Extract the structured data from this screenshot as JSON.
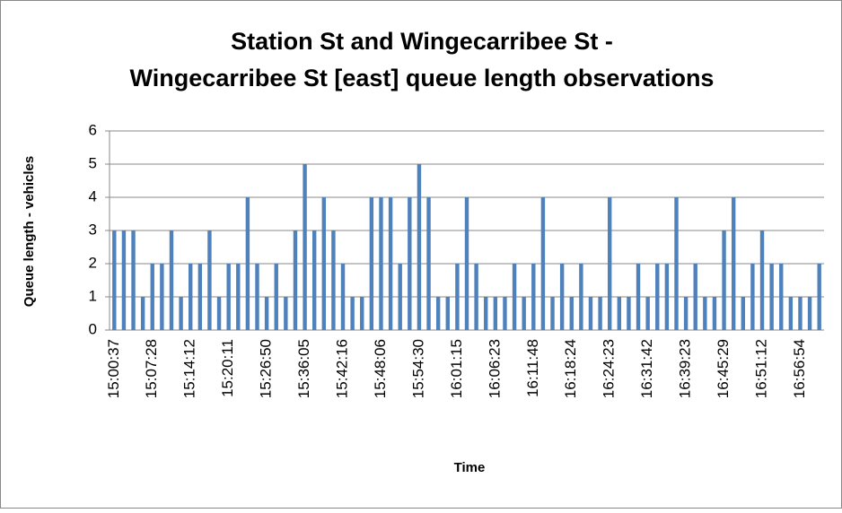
{
  "chart_data": {
    "type": "bar",
    "title": "Station St and Wingecarribee St - Wingecarribee St [east] queue length observations",
    "x_label": "Time",
    "y_label": "Queue length - vehicles",
    "categories": [
      "15:00:37",
      null,
      null,
      null,
      "15:07:28",
      null,
      null,
      null,
      "15:14:12",
      null,
      null,
      null,
      "15:20:11",
      null,
      null,
      null,
      "15:26:50",
      null,
      null,
      null,
      "15:36:05",
      null,
      null,
      null,
      "15:42:16",
      null,
      null,
      null,
      "15:48:06",
      null,
      null,
      null,
      "15:54:30",
      null,
      null,
      null,
      "16:01:15",
      null,
      null,
      null,
      "16:06:23",
      null,
      null,
      null,
      "16:11:48",
      null,
      null,
      null,
      "16:18:24",
      null,
      null,
      null,
      "16:24:23",
      null,
      null,
      null,
      "16:31:42",
      null,
      null,
      null,
      "16:39:23",
      null,
      null,
      null,
      "16:45:29",
      null,
      null,
      null,
      "16:51:12",
      null,
      null,
      null,
      "16:56:54",
      null,
      null
    ],
    "values": [
      3,
      3,
      3,
      1,
      2,
      2,
      3,
      1,
      2,
      2,
      3,
      1,
      2,
      2,
      4,
      2,
      1,
      2,
      1,
      3,
      5,
      3,
      4,
      3,
      2,
      1,
      1,
      4,
      4,
      4,
      2,
      4,
      5,
      4,
      1,
      1,
      2,
      4,
      2,
      1,
      1,
      1,
      2,
      1,
      2,
      4,
      1,
      2,
      1,
      2,
      1,
      1,
      4,
      1,
      1,
      2,
      1,
      2,
      2,
      4,
      1,
      2,
      1,
      1,
      3,
      4,
      1,
      2,
      3,
      2,
      2,
      1,
      1,
      1,
      2
    ],
    "color": "#4f81bd",
    "ylim": [
      0,
      6
    ],
    "yticks": [
      0,
      1,
      2,
      3,
      4,
      5,
      6
    ],
    "grid": true
  }
}
